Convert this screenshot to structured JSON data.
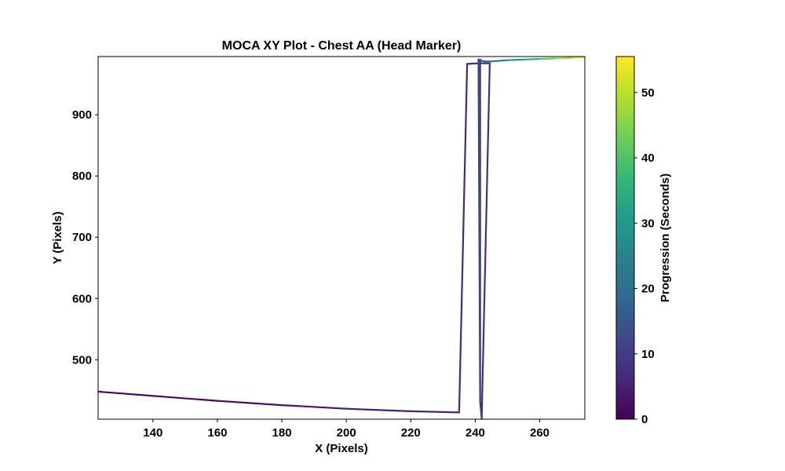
{
  "chart_data": {
    "type": "line",
    "title": "MOCA XY Plot - Chest AA (Head Marker)",
    "xlabel": "X (Pixels)",
    "ylabel": "Y (Pixels)",
    "xlim": [
      123,
      274
    ],
    "ylim": [
      403,
      995
    ],
    "x_ticks": [
      140,
      160,
      180,
      200,
      220,
      240,
      260
    ],
    "y_ticks": [
      500,
      600,
      700,
      800,
      900
    ],
    "grid": false,
    "colorbar": {
      "label": "Progression (Seconds)",
      "range": [
        0,
        55.5
      ],
      "ticks": [
        0,
        10,
        20,
        30,
        40,
        50
      ],
      "colormap": "viridis",
      "colors": [
        "#440154",
        "#482878",
        "#3e4989",
        "#31688e",
        "#26828e",
        "#1f9e89",
        "#35b779",
        "#6ece58",
        "#b5de2b",
        "#fde725"
      ]
    },
    "series": [
      {
        "x": [
          123,
          140,
          160,
          180,
          200,
          220,
          235,
          237.5,
          241,
          244.5,
          242,
          241.5,
          241.5,
          241.5,
          241,
          242,
          243,
          245,
          250,
          255,
          260,
          265,
          270,
          274
        ],
        "y": [
          448,
          441,
          433,
          426,
          420,
          416,
          414,
          983,
          984,
          984,
          404,
          433,
          990,
          433,
          990,
          988,
          987,
          987,
          989,
          990,
          991,
          992,
          993,
          994
        ],
        "t": [
          0,
          1,
          2,
          3,
          4,
          5,
          6,
          6.5,
          7,
          7.5,
          8,
          9,
          10,
          11,
          12,
          14,
          16,
          20,
          26,
          32,
          38,
          44,
          50,
          55.5
        ]
      }
    ]
  }
}
